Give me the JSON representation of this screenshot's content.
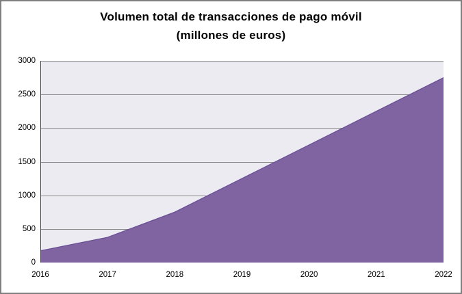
{
  "window": {
    "border_color": "#7f7f7f",
    "background": "#ffffff"
  },
  "chart_data": {
    "type": "area",
    "title": "Volumen total de transacciones de pago móvil",
    "subtitle": "(millones de euros)",
    "categories": [
      "2016",
      "2017",
      "2018",
      "2019",
      "2020",
      "2021",
      "2022"
    ],
    "series": [
      {
        "name": "Volumen total de transacciones de pago móvil (millones de euros)",
        "values": [
          175,
          375,
          750,
          1250,
          1750,
          2250,
          2750
        ]
      }
    ],
    "xlabel": "",
    "ylabel": "",
    "ylim": [
      0,
      3000
    ],
    "ytick_step": 500,
    "grid": true,
    "legend": false,
    "colors": {
      "area_fill": "#8064A2",
      "area_stroke": "#6A5192",
      "plot_bg": "#ECEBF1",
      "gridline": "#898989",
      "axis_line": "#404040",
      "tick_label": "#000000",
      "title": "#000000"
    }
  }
}
